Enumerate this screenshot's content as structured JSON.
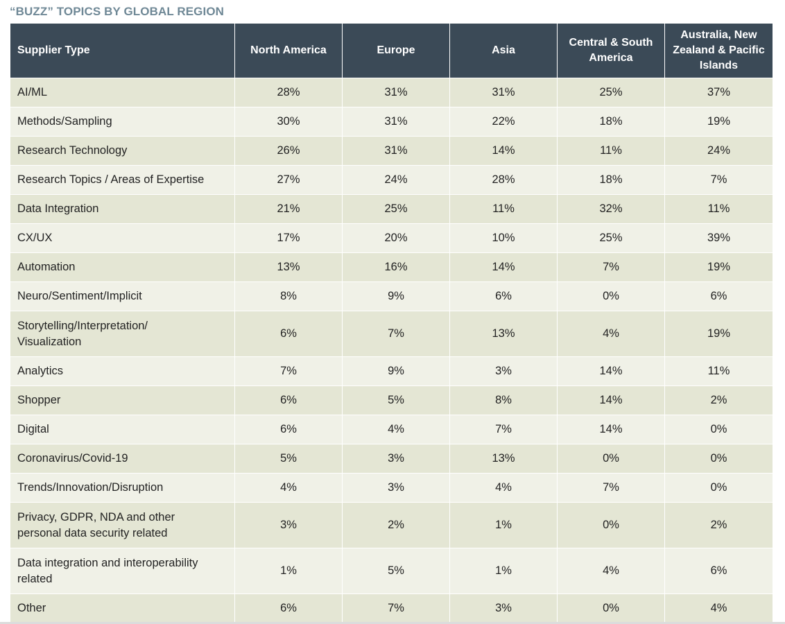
{
  "title": "“BUZZ” TOPICS BY GLOBAL REGION",
  "chart_data": {
    "type": "table",
    "title": "“BUZZ” TOPICS BY GLOBAL REGION",
    "columns": [
      "Supplier Type",
      "North America",
      "Europe",
      "Asia",
      "Central & South America",
      "Australia, New Zealand & Pacific Islands"
    ],
    "rows": [
      {
        "label": "AI/ML",
        "values": [
          "28%",
          "31%",
          "31%",
          "25%",
          "37%"
        ]
      },
      {
        "label": "Methods/Sampling",
        "values": [
          "30%",
          "31%",
          "22%",
          "18%",
          "19%"
        ]
      },
      {
        "label": "Research Technology",
        "values": [
          "26%",
          "31%",
          "14%",
          "11%",
          "24%"
        ]
      },
      {
        "label": "Research Topics / Areas of Expertise",
        "values": [
          "27%",
          "24%",
          "28%",
          "18%",
          "7%"
        ]
      },
      {
        "label": "Data Integration",
        "values": [
          "21%",
          "25%",
          "11%",
          "32%",
          "11%"
        ]
      },
      {
        "label": "CX/UX",
        "values": [
          "17%",
          "20%",
          "10%",
          "25%",
          "39%"
        ]
      },
      {
        "label": "Automation",
        "values": [
          "13%",
          "16%",
          "14%",
          "7%",
          "19%"
        ]
      },
      {
        "label": "Neuro/Sentiment/Implicit",
        "values": [
          "8%",
          "9%",
          "6%",
          "0%",
          "6%"
        ]
      },
      {
        "label": "Storytelling/Interpretation/ Visualization",
        "values": [
          "6%",
          "7%",
          "13%",
          "4%",
          "19%"
        ]
      },
      {
        "label": "Analytics",
        "values": [
          "7%",
          "9%",
          "3%",
          "14%",
          "11%"
        ]
      },
      {
        "label": "Shopper",
        "values": [
          "6%",
          "5%",
          "8%",
          "14%",
          "2%"
        ]
      },
      {
        "label": "Digital",
        "values": [
          "6%",
          "4%",
          "7%",
          "14%",
          "0%"
        ]
      },
      {
        "label": "Coronavirus/Covid-19",
        "values": [
          "5%",
          "3%",
          "13%",
          "0%",
          "0%"
        ]
      },
      {
        "label": "Trends/Innovation/Disruption",
        "values": [
          "4%",
          "3%",
          "4%",
          "7%",
          "0%"
        ]
      },
      {
        "label": "Privacy, GDPR, NDA and other personal data security related",
        "values": [
          "3%",
          "2%",
          "1%",
          "0%",
          "2%"
        ]
      },
      {
        "label": "Data integration and interoperability related",
        "values": [
          "1%",
          "5%",
          "1%",
          "4%",
          "6%"
        ]
      },
      {
        "label": "Other",
        "values": [
          "6%",
          "7%",
          "3%",
          "0%",
          "4%"
        ]
      }
    ]
  }
}
